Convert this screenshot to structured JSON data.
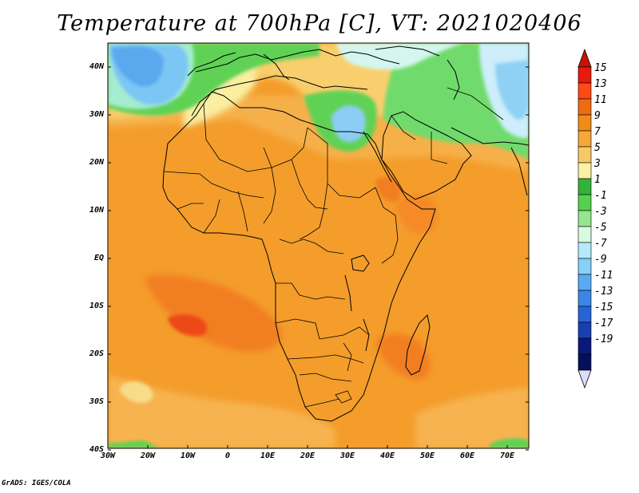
{
  "title": "Temperature at 700hPa [C], VT: 2021020406",
  "footer": "GrADS: IGES/COLA",
  "lat_labels": [
    "40N",
    "30N",
    "20N",
    "10N",
    "EQ",
    "10S",
    "20S",
    "30S",
    "40S"
  ],
  "lon_labels": [
    "30W",
    "20W",
    "10W",
    "0",
    "10E",
    "20E",
    "30E",
    "40E",
    "50E",
    "60E",
    "70E"
  ],
  "colorbar": {
    "labels": [
      "15",
      "13",
      "11",
      "9",
      "7",
      "5",
      "3",
      "1",
      "-1",
      "-3",
      "-5",
      "-7",
      "-9",
      "-11",
      "-13",
      "-15",
      "-17",
      "-19"
    ],
    "colors": [
      "#e81a0b",
      "#ff4a15",
      "#f06b10",
      "#f08c17",
      "#f5a83a",
      "#f8c866",
      "#faf1a4",
      "#33b23a",
      "#55d04f",
      "#95e68c",
      "#d7fae0",
      "#b5eafa",
      "#86d0fa",
      "#5aaaf2",
      "#3c86e8",
      "#2864d6",
      "#1840b4",
      "#0a1a7a",
      "#05105a"
    ],
    "top_color": "#c81206",
    "bottom_color": "#dcdcff"
  },
  "map": {
    "lon_range": [
      -30,
      75
    ],
    "lat_range": [
      -40,
      45
    ],
    "ocean_color": "#f2a236",
    "land_color": "#f29a2a"
  }
}
